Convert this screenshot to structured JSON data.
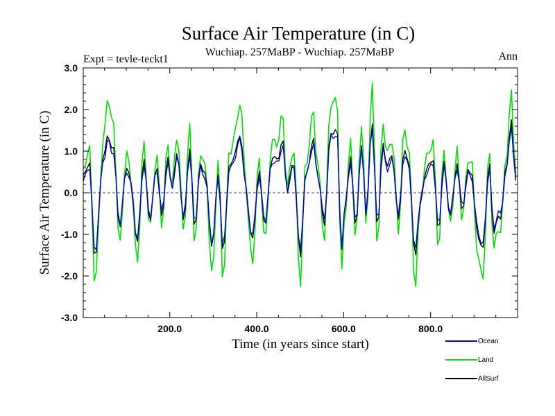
{
  "title": "Surface Air Temperature (in C)",
  "expt_label": "Expt = tevle-teckt1",
  "period_label": "Wuchiap. 257MaBP - Wuchiap. 257MaBP",
  "season_label": "Ann",
  "chart_data": {
    "type": "line",
    "title": "Surface Air Temperature (in C)",
    "xlabel": "Time (in years since start)",
    "ylabel": "Surface Air Temperature (in C)",
    "xlim": [
      1,
      1000
    ],
    "ylim": [
      -3.0,
      3.0
    ],
    "x_ticks": [
      200,
      400,
      600,
      800
    ],
    "x_tick_labels": [
      "200.0",
      "400.0",
      "600.0",
      "800.0"
    ],
    "y_ticks": [
      -3,
      -2,
      -1,
      0,
      1,
      2,
      3
    ],
    "y_tick_labels": [
      "-3.0",
      "-2.0",
      "-1.0",
      "0.0",
      "1.0",
      "2.0",
      "3.0"
    ],
    "zero_line": 0.0,
    "legend_position": "bottom-right",
    "sampling_step": 5,
    "series": [
      {
        "name": "Land",
        "color": "#00e000",
        "x_start": 1,
        "peaks": [
          [
            1,
            0.6
          ],
          [
            15,
            1.0
          ],
          [
            28,
            -2.1
          ],
          [
            48,
            1.3
          ],
          [
            58,
            2.4
          ],
          [
            70,
            1.5
          ],
          [
            85,
            -1.2
          ],
          [
            100,
            0.9
          ],
          [
            112,
            0.3
          ],
          [
            125,
            -1.8
          ],
          [
            140,
            1.2
          ],
          [
            155,
            -0.9
          ],
          [
            170,
            1.0
          ],
          [
            182,
            -0.8
          ],
          [
            195,
            1.1
          ],
          [
            205,
            0.3
          ],
          [
            218,
            1.3
          ],
          [
            232,
            -0.9
          ],
          [
            245,
            1.5
          ],
          [
            258,
            -1.2
          ],
          [
            270,
            1.0
          ],
          [
            282,
            0.5
          ],
          [
            298,
            -2.0
          ],
          [
            312,
            0.8
          ],
          [
            322,
            -2.0
          ],
          [
            338,
            0.9
          ],
          [
            350,
            1.5
          ],
          [
            362,
            2.2
          ],
          [
            375,
            0.2
          ],
          [
            390,
            -1.8
          ],
          [
            405,
            0.8
          ],
          [
            420,
            -1.2
          ],
          [
            435,
            1.3
          ],
          [
            448,
            1.2
          ],
          [
            460,
            1.8
          ],
          [
            470,
            0.2
          ],
          [
            485,
            1.0
          ],
          [
            500,
            -2.1
          ],
          [
            512,
            0.5
          ],
          [
            530,
            2.0
          ],
          [
            540,
            0.6
          ],
          [
            555,
            -1.0
          ],
          [
            570,
            2.1
          ],
          [
            585,
            2.2
          ],
          [
            595,
            -2.0
          ],
          [
            605,
            -0.3
          ],
          [
            615,
            1.3
          ],
          [
            628,
            -1.1
          ],
          [
            642,
            1.8
          ],
          [
            652,
            -0.9
          ],
          [
            665,
            2.6
          ],
          [
            678,
            -1.2
          ],
          [
            690,
            1.6
          ],
          [
            700,
            1.0
          ],
          [
            712,
            1.3
          ],
          [
            726,
            -1.0
          ],
          [
            738,
            1.5
          ],
          [
            750,
            1.0
          ],
          [
            764,
            -2.2
          ],
          [
            775,
            -0.5
          ],
          [
            790,
            0.9
          ],
          [
            805,
            1.2
          ],
          [
            818,
            -1.3
          ],
          [
            830,
            1.0
          ],
          [
            845,
            -0.8
          ],
          [
            860,
            1.0
          ],
          [
            872,
            -0.6
          ],
          [
            888,
            0.9
          ],
          [
            895,
            0.6
          ],
          [
            905,
            -1.2
          ],
          [
            920,
            -2.1
          ],
          [
            935,
            1.0
          ],
          [
            945,
            -1.3
          ],
          [
            960,
            -0.9
          ],
          [
            975,
            1.0
          ],
          [
            985,
            2.3
          ],
          [
            995,
            0.6
          ],
          [
            1000,
            1.0
          ]
        ]
      },
      {
        "name": "AllSurf",
        "color": "#000000",
        "x_start": 1,
        "peaks": [
          [
            1,
            0.4
          ],
          [
            15,
            0.7
          ],
          [
            28,
            -1.5
          ],
          [
            48,
            0.9
          ],
          [
            58,
            1.4
          ],
          [
            70,
            1.0
          ],
          [
            85,
            -0.8
          ],
          [
            100,
            0.6
          ],
          [
            112,
            0.2
          ],
          [
            125,
            -1.3
          ],
          [
            140,
            0.8
          ],
          [
            155,
            -0.7
          ],
          [
            170,
            0.7
          ],
          [
            182,
            -0.6
          ],
          [
            195,
            0.8
          ],
          [
            205,
            0.2
          ],
          [
            218,
            0.9
          ],
          [
            232,
            -0.7
          ],
          [
            245,
            1.0
          ],
          [
            258,
            -0.8
          ],
          [
            270,
            0.7
          ],
          [
            282,
            0.4
          ],
          [
            298,
            -1.3
          ],
          [
            312,
            0.5
          ],
          [
            322,
            -1.4
          ],
          [
            338,
            0.6
          ],
          [
            350,
            1.0
          ],
          [
            362,
            1.4
          ],
          [
            375,
            0.1
          ],
          [
            390,
            -1.2
          ],
          [
            405,
            0.5
          ],
          [
            420,
            -0.8
          ],
          [
            435,
            0.9
          ],
          [
            448,
            0.8
          ],
          [
            460,
            1.2
          ],
          [
            470,
            0.1
          ],
          [
            485,
            0.7
          ],
          [
            500,
            -1.5
          ],
          [
            512,
            0.3
          ],
          [
            530,
            1.3
          ],
          [
            540,
            0.4
          ],
          [
            555,
            -0.7
          ],
          [
            570,
            1.4
          ],
          [
            585,
            1.5
          ],
          [
            595,
            -1.4
          ],
          [
            605,
            -0.2
          ],
          [
            615,
            0.9
          ],
          [
            628,
            -0.8
          ],
          [
            642,
            1.2
          ],
          [
            652,
            -0.6
          ],
          [
            665,
            1.7
          ],
          [
            678,
            -0.8
          ],
          [
            690,
            1.1
          ],
          [
            700,
            0.7
          ],
          [
            712,
            0.9
          ],
          [
            726,
            -0.7
          ],
          [
            738,
            1.0
          ],
          [
            750,
            0.7
          ],
          [
            764,
            -1.5
          ],
          [
            775,
            -0.4
          ],
          [
            790,
            0.6
          ],
          [
            805,
            0.8
          ],
          [
            818,
            -0.9
          ],
          [
            830,
            0.7
          ],
          [
            845,
            -0.6
          ],
          [
            860,
            0.7
          ],
          [
            872,
            -0.4
          ],
          [
            888,
            0.6
          ],
          [
            895,
            0.4
          ],
          [
            905,
            -0.8
          ],
          [
            920,
            -1.4
          ],
          [
            935,
            0.7
          ],
          [
            945,
            -0.9
          ],
          [
            960,
            -0.6
          ],
          [
            975,
            0.7
          ],
          [
            985,
            1.7
          ],
          [
            995,
            0.4
          ],
          [
            1000,
            0.7
          ]
        ]
      },
      {
        "name": "Ocean",
        "color": "#0000dd",
        "x_start": 1,
        "peaks": [
          [
            1,
            0.3
          ],
          [
            15,
            0.6
          ],
          [
            28,
            -1.4
          ],
          [
            48,
            0.8
          ],
          [
            58,
            1.3
          ],
          [
            70,
            0.9
          ],
          [
            85,
            -0.7
          ],
          [
            100,
            0.5
          ],
          [
            112,
            0.2
          ],
          [
            125,
            -1.2
          ],
          [
            140,
            0.7
          ],
          [
            155,
            -0.6
          ],
          [
            170,
            0.6
          ],
          [
            182,
            -0.5
          ],
          [
            195,
            0.7
          ],
          [
            205,
            0.2
          ],
          [
            218,
            0.8
          ],
          [
            232,
            -0.6
          ],
          [
            245,
            0.9
          ],
          [
            258,
            -0.7
          ],
          [
            270,
            0.6
          ],
          [
            282,
            0.3
          ],
          [
            298,
            -1.2
          ],
          [
            312,
            0.4
          ],
          [
            322,
            -1.3
          ],
          [
            338,
            0.5
          ],
          [
            350,
            0.9
          ],
          [
            362,
            1.3
          ],
          [
            375,
            0.1
          ],
          [
            390,
            -1.1
          ],
          [
            405,
            0.4
          ],
          [
            420,
            -0.7
          ],
          [
            435,
            0.8
          ],
          [
            448,
            0.7
          ],
          [
            460,
            1.1
          ],
          [
            470,
            0.1
          ],
          [
            485,
            0.6
          ],
          [
            500,
            -1.4
          ],
          [
            512,
            0.3
          ],
          [
            530,
            1.2
          ],
          [
            540,
            0.4
          ],
          [
            555,
            -0.6
          ],
          [
            570,
            1.3
          ],
          [
            585,
            1.4
          ],
          [
            595,
            -1.3
          ],
          [
            605,
            -0.2
          ],
          [
            615,
            0.8
          ],
          [
            628,
            -0.7
          ],
          [
            642,
            1.1
          ],
          [
            652,
            -0.5
          ],
          [
            665,
            1.6
          ],
          [
            678,
            -0.7
          ],
          [
            690,
            1.0
          ],
          [
            700,
            0.6
          ],
          [
            712,
            0.8
          ],
          [
            726,
            -0.6
          ],
          [
            738,
            0.9
          ],
          [
            750,
            0.6
          ],
          [
            764,
            -1.4
          ],
          [
            775,
            -0.3
          ],
          [
            790,
            0.5
          ],
          [
            805,
            0.7
          ],
          [
            818,
            -0.8
          ],
          [
            830,
            0.6
          ],
          [
            845,
            -0.5
          ],
          [
            860,
            0.6
          ],
          [
            872,
            -0.3
          ],
          [
            888,
            0.5
          ],
          [
            895,
            0.3
          ],
          [
            905,
            -0.7
          ],
          [
            920,
            -1.3
          ],
          [
            935,
            0.6
          ],
          [
            945,
            -0.8
          ],
          [
            960,
            -0.5
          ],
          [
            975,
            0.6
          ],
          [
            985,
            1.6
          ],
          [
            995,
            0.3
          ],
          [
            1000,
            0.6
          ]
        ]
      }
    ],
    "legend": [
      {
        "name": "Ocean",
        "color": "#0000dd"
      },
      {
        "name": "Land",
        "color": "#00e000"
      },
      {
        "name": "AllSurf",
        "color": "#000000"
      }
    ]
  }
}
